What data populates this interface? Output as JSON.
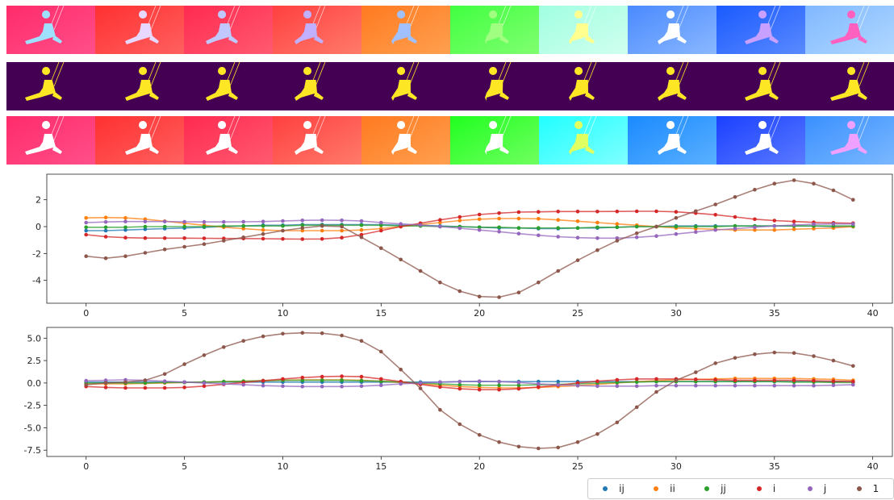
{
  "strips": {
    "top_colors": [
      [
        "#ff2b6a",
        "#ff4f8a"
      ],
      [
        "#ff3030",
        "#ff6060"
      ],
      [
        "#ff2a50",
        "#ff5a70"
      ],
      [
        "#ff4040",
        "#ff7a6a"
      ],
      [
        "#ff7a20",
        "#ffa050"
      ],
      [
        "#40ff40",
        "#80ff70"
      ],
      [
        "#a0ffe0",
        "#d0fff0"
      ],
      [
        "#4a8aff",
        "#8ab8ff"
      ],
      [
        "#1a5aff",
        "#5a8aff"
      ],
      [
        "#80b8ff",
        "#b0d8ff"
      ]
    ],
    "mask_colors": {
      "bg": "#440154",
      "fg": "#fde725"
    },
    "bottom_colors": [
      [
        "#ff2b6a",
        "#ff4f8a"
      ],
      [
        "#ff3030",
        "#ff6060"
      ],
      [
        "#ff2a50",
        "#ff5a70"
      ],
      [
        "#ff4040",
        "#ff7a6a"
      ],
      [
        "#ff7a20",
        "#ffa050"
      ],
      [
        "#20ff20",
        "#70ff60"
      ],
      [
        "#20ffff",
        "#80ffff"
      ],
      [
        "#1a8aff",
        "#5ab0ff"
      ],
      [
        "#1a40ff",
        "#5a7aff"
      ],
      [
        "#3a90ff",
        "#7ab8ff"
      ]
    ],
    "silhouette_colors": [
      "#a0e0ff",
      "#e8d8ff",
      "#c0c8ff",
      "#c0b0ff",
      "#a0c0ff",
      "#a0ff80",
      "#ffff90",
      "#ffffff",
      "#c8a0ff",
      "#ff60c0"
    ]
  },
  "legend": [
    {
      "label": "ij",
      "color": "#1f77b4"
    },
    {
      "label": "ii",
      "color": "#ff7f0e"
    },
    {
      "label": "jj",
      "color": "#2ca02c"
    },
    {
      "label": "i",
      "color": "#d62728"
    },
    {
      "label": "j",
      "color": "#9467bd"
    },
    {
      "label": "1",
      "color": "#8c564b"
    }
  ],
  "chart_data": [
    {
      "type": "line",
      "x": [
        0,
        1,
        2,
        3,
        4,
        5,
        6,
        7,
        8,
        9,
        10,
        11,
        12,
        13,
        14,
        15,
        16,
        17,
        18,
        19,
        20,
        21,
        22,
        23,
        24,
        25,
        26,
        27,
        28,
        29,
        30,
        31,
        32,
        33,
        34,
        35,
        36,
        37,
        38,
        39
      ],
      "xlim": [
        -2,
        41
      ],
      "ylim": [
        -5.7,
        3.9
      ],
      "xticks": [
        0,
        5,
        10,
        15,
        20,
        25,
        30,
        35,
        40
      ],
      "yticks": [
        -4,
        -2,
        0,
        2
      ],
      "series": [
        {
          "name": "ij",
          "color": "#1f77b4",
          "values": [
            -0.3,
            -0.3,
            -0.25,
            -0.2,
            -0.15,
            -0.1,
            -0.05,
            0.0,
            0.05,
            0.1,
            0.1,
            0.15,
            0.15,
            0.15,
            0.15,
            0.15,
            0.1,
            0.1,
            0.05,
            0.0,
            -0.05,
            -0.1,
            -0.1,
            -0.15,
            -0.15,
            -0.1,
            -0.1,
            -0.05,
            0.0,
            0.0,
            0.05,
            0.05,
            0.05,
            0.05,
            0.05,
            0.05,
            0.05,
            0.05,
            0.0,
            0.0
          ]
        },
        {
          "name": "ii",
          "color": "#ff7f0e",
          "values": [
            0.65,
            0.68,
            0.65,
            0.55,
            0.4,
            0.25,
            0.1,
            -0.05,
            -0.15,
            -0.25,
            -0.3,
            -0.3,
            -0.3,
            -0.3,
            -0.25,
            -0.15,
            0.0,
            0.15,
            0.3,
            0.45,
            0.55,
            0.6,
            0.6,
            0.58,
            0.5,
            0.4,
            0.3,
            0.2,
            0.1,
            0.0,
            -0.1,
            -0.15,
            -0.2,
            -0.25,
            -0.25,
            -0.25,
            -0.2,
            -0.15,
            -0.1,
            0.0
          ]
        },
        {
          "name": "jj",
          "color": "#2ca02c",
          "values": [
            -0.05,
            -0.05,
            -0.05,
            0.0,
            0.0,
            0.0,
            0.0,
            0.05,
            0.05,
            0.05,
            0.05,
            0.1,
            0.1,
            0.1,
            0.1,
            0.1,
            0.05,
            0.05,
            0.0,
            0.0,
            -0.05,
            -0.05,
            -0.1,
            -0.1,
            -0.1,
            -0.1,
            -0.05,
            -0.05,
            0.0,
            0.0,
            0.0,
            0.0,
            0.0,
            0.05,
            0.05,
            0.05,
            0.05,
            0.05,
            0.05,
            0.05
          ]
        },
        {
          "name": "i",
          "color": "#d62728",
          "values": [
            -0.6,
            -0.75,
            -0.82,
            -0.85,
            -0.86,
            -0.86,
            -0.87,
            -0.88,
            -0.89,
            -0.9,
            -0.92,
            -0.93,
            -0.92,
            -0.82,
            -0.6,
            -0.3,
            0.0,
            0.25,
            0.5,
            0.72,
            0.9,
            1.0,
            1.08,
            1.1,
            1.12,
            1.12,
            1.12,
            1.13,
            1.14,
            1.14,
            1.1,
            1.0,
            0.88,
            0.72,
            0.55,
            0.45,
            0.38,
            0.32,
            0.28,
            0.25
          ]
        },
        {
          "name": "j",
          "color": "#9467bd",
          "values": [
            0.3,
            0.35,
            0.38,
            0.38,
            0.38,
            0.36,
            0.35,
            0.35,
            0.36,
            0.38,
            0.42,
            0.46,
            0.48,
            0.47,
            0.42,
            0.3,
            0.2,
            0.12,
            0.0,
            -0.12,
            -0.25,
            -0.38,
            -0.52,
            -0.65,
            -0.75,
            -0.82,
            -0.86,
            -0.86,
            -0.8,
            -0.7,
            -0.55,
            -0.4,
            -0.25,
            -0.15,
            -0.05,
            0.05,
            0.12,
            0.18,
            0.2,
            0.2
          ]
        },
        {
          "name": "1",
          "color": "#8c564b",
          "values": [
            -2.2,
            -2.35,
            -2.2,
            -1.95,
            -1.7,
            -1.5,
            -1.3,
            -1.05,
            -0.8,
            -0.55,
            -0.3,
            -0.1,
            0.05,
            0.0,
            -0.8,
            -1.6,
            -2.45,
            -3.3,
            -4.15,
            -4.8,
            -5.2,
            -5.25,
            -4.9,
            -4.15,
            -3.3,
            -2.5,
            -1.75,
            -1.05,
            -0.5,
            0.0,
            0.65,
            1.15,
            1.65,
            2.2,
            2.75,
            3.2,
            3.45,
            3.2,
            2.7,
            2.0
          ]
        }
      ]
    },
    {
      "type": "line",
      "x": [
        0,
        1,
        2,
        3,
        4,
        5,
        6,
        7,
        8,
        9,
        10,
        11,
        12,
        13,
        14,
        15,
        16,
        17,
        18,
        19,
        20,
        21,
        22,
        23,
        24,
        25,
        26,
        27,
        28,
        29,
        30,
        31,
        32,
        33,
        34,
        35,
        36,
        37,
        38,
        39
      ],
      "xlim": [
        -2,
        41
      ],
      "ylim": [
        -8.2,
        6.2
      ],
      "xticks": [
        0,
        5,
        10,
        15,
        20,
        25,
        30,
        35,
        40
      ],
      "yticks": [
        -7.5,
        -5.0,
        -2.5,
        0.0,
        2.5,
        5.0
      ],
      "series": [
        {
          "name": "ij",
          "color": "#1f77b4",
          "values": [
            0.1,
            0.1,
            0.1,
            0.1,
            0.1,
            0.1,
            0.1,
            0.1,
            0.1,
            0.1,
            0.1,
            0.1,
            0.1,
            0.1,
            0.1,
            0.1,
            0.1,
            0.1,
            0.1,
            0.15,
            0.15,
            0.15,
            0.15,
            0.15,
            0.15,
            0.15,
            0.15,
            0.15,
            0.15,
            0.15,
            0.15,
            0.15,
            0.15,
            0.15,
            0.15,
            0.15,
            0.15,
            0.15,
            0.15,
            0.15
          ]
        },
        {
          "name": "ii",
          "color": "#ff7f0e",
          "values": [
            -0.1,
            -0.1,
            -0.1,
            -0.05,
            0.0,
            0.05,
            0.1,
            0.15,
            0.2,
            0.25,
            0.3,
            0.35,
            0.35,
            0.35,
            0.3,
            0.2,
            0.05,
            -0.1,
            -0.25,
            -0.4,
            -0.5,
            -0.55,
            -0.55,
            -0.5,
            -0.4,
            -0.3,
            -0.15,
            0.0,
            0.15,
            0.25,
            0.35,
            0.4,
            0.45,
            0.5,
            0.5,
            0.5,
            0.5,
            0.45,
            0.4,
            0.3
          ]
        },
        {
          "name": "jj",
          "color": "#2ca02c",
          "values": [
            0.0,
            0.0,
            0.0,
            0.0,
            0.05,
            0.05,
            0.1,
            0.15,
            0.2,
            0.25,
            0.3,
            0.3,
            0.3,
            0.3,
            0.25,
            0.2,
            0.1,
            0.0,
            -0.1,
            -0.2,
            -0.25,
            -0.25,
            -0.25,
            -0.2,
            -0.15,
            -0.1,
            0.0,
            0.05,
            0.1,
            0.15,
            0.15,
            0.15,
            0.15,
            0.15,
            0.15,
            0.15,
            0.1,
            0.1,
            0.05,
            0.05
          ]
        },
        {
          "name": "i",
          "color": "#d62728",
          "values": [
            -0.4,
            -0.5,
            -0.55,
            -0.55,
            -0.55,
            -0.5,
            -0.35,
            -0.15,
            0.05,
            0.25,
            0.45,
            0.6,
            0.7,
            0.75,
            0.7,
            0.45,
            0.15,
            -0.15,
            -0.45,
            -0.65,
            -0.75,
            -0.75,
            -0.65,
            -0.45,
            -0.25,
            0.0,
            0.2,
            0.35,
            0.45,
            0.45,
            0.45,
            0.4,
            0.35,
            0.3,
            0.3,
            0.3,
            0.3,
            0.25,
            0.2,
            0.15
          ]
        },
        {
          "name": "j",
          "color": "#9467bd",
          "values": [
            0.25,
            0.3,
            0.35,
            0.3,
            0.2,
            0.1,
            0.0,
            -0.1,
            -0.2,
            -0.3,
            -0.35,
            -0.4,
            -0.4,
            -0.4,
            -0.35,
            -0.25,
            -0.1,
            0.0,
            0.1,
            0.15,
            0.2,
            0.15,
            0.05,
            -0.1,
            -0.2,
            -0.3,
            -0.35,
            -0.35,
            -0.35,
            -0.3,
            -0.3,
            -0.3,
            -0.3,
            -0.3,
            -0.3,
            -0.3,
            -0.3,
            -0.3,
            -0.25,
            -0.2
          ]
        },
        {
          "name": "1",
          "color": "#8c564b",
          "values": [
            -0.2,
            0.0,
            0.1,
            0.3,
            1.0,
            2.1,
            3.1,
            4.0,
            4.7,
            5.2,
            5.5,
            5.6,
            5.55,
            5.3,
            4.7,
            3.5,
            1.5,
            -0.6,
            -3.0,
            -4.6,
            -5.8,
            -6.6,
            -7.1,
            -7.3,
            -7.2,
            -6.6,
            -5.7,
            -4.4,
            -2.7,
            -1.0,
            0.3,
            1.2,
            2.2,
            2.8,
            3.2,
            3.4,
            3.35,
            3.0,
            2.5,
            1.9
          ]
        }
      ]
    }
  ]
}
